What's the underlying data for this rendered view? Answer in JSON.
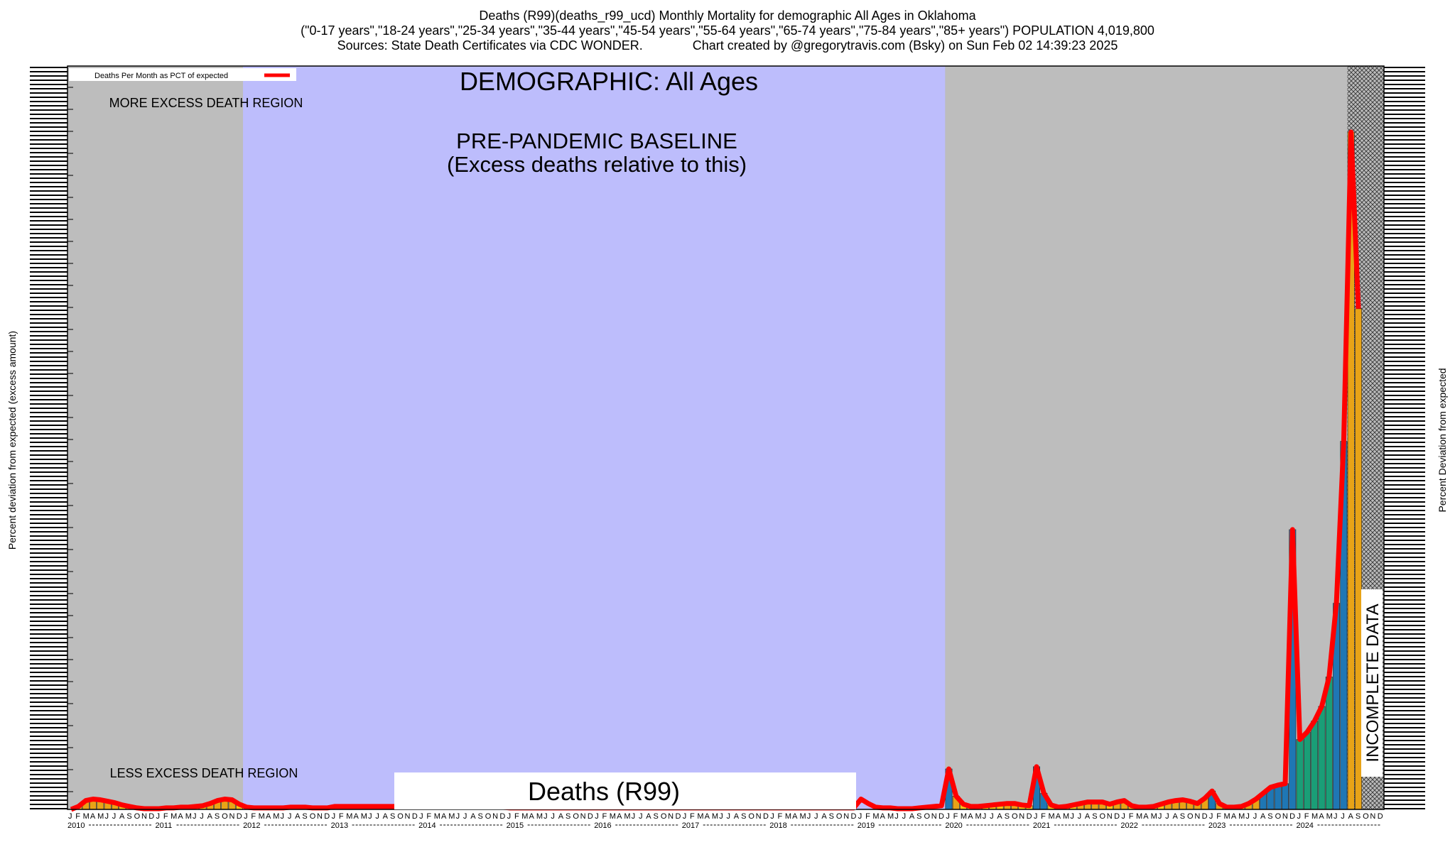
{
  "header": {
    "line1": "Deaths (R99)(deaths_r99_ucd) Monthly Mortality for demographic All Ages in Oklahoma",
    "line2": "(\"0-17 years\",\"18-24 years\",\"25-34 years\",\"35-44 years\",\"45-54 years\",\"55-64 years\",\"65-74 years\",\"75-84 years\",\"85+ years\") POPULATION 4,019,800",
    "line3": "Sources: State Death Certificates via CDC WONDER.              Chart created by @gregorytravis.com (Bsky) on Sun Feb 02 14:39:23 2025"
  },
  "chart_data": {
    "type": "bar",
    "demographic_label": "DEMOGRAPHIC: All Ages",
    "baseline_label_1": "PRE-PANDEMIC BASELINE",
    "baseline_label_2": "(Excess deaths relative to this)",
    "more_region_label": "MORE EXCESS DEATH REGION",
    "less_region_label": "LESS EXCESS DEATH REGION",
    "bottom_label": "Deaths (R99)",
    "incomplete_label": "INCOMPLETE DATA",
    "legend_label": "Deaths Per Month as PCT of expected",
    "ylabel_left": "Percent deviation from expected (excess amount)",
    "ylabel_right": "Percent Deviation from expected",
    "month_letters": [
      "J",
      "F",
      "M",
      "A",
      "M",
      "J",
      "J",
      "A",
      "S",
      "O",
      "N",
      "D"
    ],
    "years": [
      "2010",
      "2011",
      "2012",
      "2013",
      "2014",
      "2015",
      "2016",
      "2017",
      "2018",
      "2019",
      "2020",
      "2021",
      "2022",
      "2023",
      "2024"
    ],
    "baseline_shade": {
      "start": "2012-01",
      "end": "2019-12"
    },
    "incomplete_start": "2024-08",
    "grid": false,
    "legend_position": "top-left",
    "values": [
      0,
      4,
      12,
      14,
      13,
      11,
      9,
      6,
      4,
      2,
      1,
      1,
      1,
      2,
      2,
      3,
      3,
      4,
      5,
      8,
      12,
      14,
      13,
      7,
      3,
      2,
      2,
      2,
      2,
      2,
      3,
      3,
      3,
      2,
      2,
      2,
      4,
      4,
      4,
      4,
      4,
      4,
      4,
      4,
      4,
      4,
      4,
      4,
      4,
      3,
      3,
      3,
      3,
      3,
      3,
      3,
      3,
      3,
      3,
      3,
      2,
      2,
      2,
      2,
      2,
      2,
      2,
      2,
      2,
      2,
      2,
      2,
      2,
      2,
      2,
      2,
      2,
      2,
      2,
      2,
      2,
      2,
      2,
      2,
      2,
      2,
      2,
      2,
      2,
      2,
      2,
      2,
      2,
      2,
      2,
      2,
      2,
      2,
      2,
      2,
      2,
      2,
      2,
      2,
      2,
      2,
      2,
      2,
      14,
      8,
      3,
      2,
      2,
      1,
      1,
      1,
      2,
      3,
      4,
      5,
      55,
      18,
      7,
      4,
      4,
      5,
      6,
      7,
      8,
      8,
      6,
      5,
      58,
      22,
      6,
      3,
      4,
      6,
      8,
      10,
      10,
      10,
      7,
      10,
      12,
      5,
      3,
      3,
      4,
      7,
      10,
      12,
      13,
      11,
      8,
      15,
      25,
      8,
      3,
      3,
      4,
      8,
      14,
      22,
      30,
      33,
      35,
      380,
      95,
      105,
      120,
      140,
      180,
      280,
      500,
      920,
      680
    ],
    "bar_colors": [
      "#f5c518",
      "#e8a317",
      "#1f77b4",
      "#1a9e77",
      "#0b1a7a"
    ],
    "line_color": "#ff0000"
  }
}
